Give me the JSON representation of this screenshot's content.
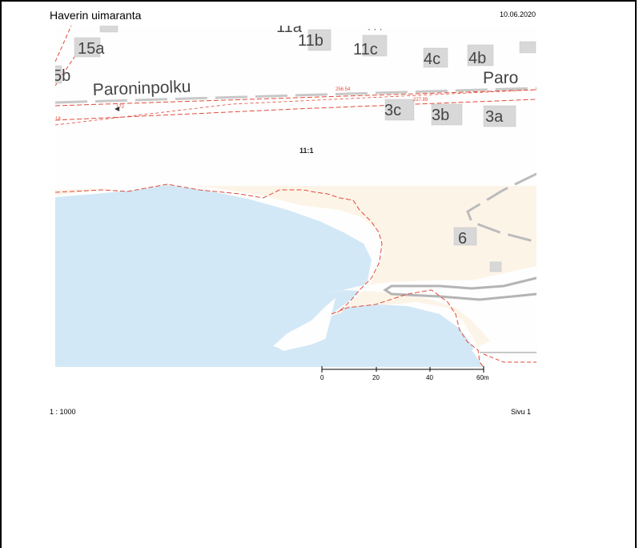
{
  "header": {
    "title": "Haverin uimaranta",
    "date": "10.06.2020"
  },
  "map": {
    "colors": {
      "water": "#d3e8f6",
      "sand": "#fdf4e8",
      "land": "#fefefe",
      "building": "#d8d8d8",
      "boundary": "#e24a3a",
      "road": "#b4b4b4"
    },
    "street_labels": [
      "Paroninpolku",
      "Paro"
    ],
    "building_labels": [
      "11a",
      "15a",
      "11b",
      "11c",
      "4c",
      "4b",
      "5b",
      "3c",
      "3b",
      "3a",
      "6"
    ],
    "parcel_label": "11:1",
    "small_numbers": [
      "172",
      "18",
      "256.54",
      "227.89"
    ],
    "scale_bar": {
      "ticks": [
        "0",
        "20",
        "40",
        "60m"
      ]
    }
  },
  "footer": {
    "scale": "1 : 1000",
    "page": "Sivu 1"
  }
}
